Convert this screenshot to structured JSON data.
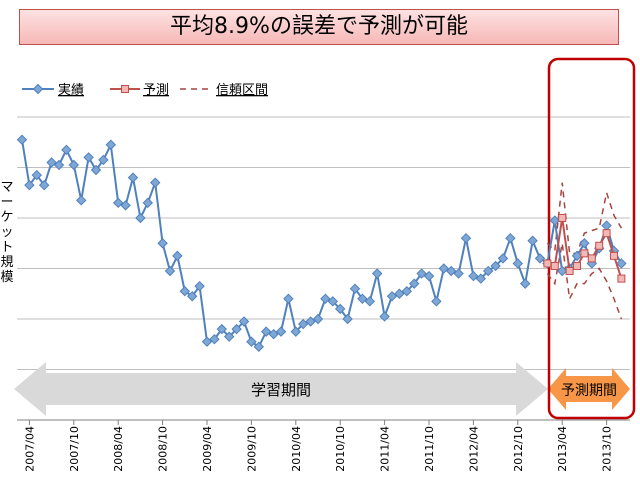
{
  "title": "平均8.9%の誤差で予測が可能",
  "ylabel_chars": [
    "マ",
    "ー",
    "ケ",
    "ッ",
    "ト",
    "規",
    "模"
  ],
  "legend": {
    "actual": "実績",
    "forecast": "予測",
    "interval": "信頼区間"
  },
  "arrows": {
    "training": "学習期間",
    "forecast": "予測期間"
  },
  "colors": {
    "actual": "#4f81bd",
    "forecast": "#c0504d",
    "interval": "#a64540",
    "grid": "#bfbfbf",
    "highlight": "#c00000",
    "training_arrow": "#d9d9d9",
    "forecast_arrow": "#f79646"
  },
  "chart_data": {
    "type": "line",
    "title": "",
    "xlabel": "",
    "ylabel": "マーケット規模",
    "x_ticks": [
      "2007/04",
      "2007/10",
      "2008/04",
      "2008/10",
      "2009/04",
      "2009/10",
      "2010/04",
      "2010/10",
      "2011/04",
      "2011/10",
      "2012/04",
      "2012/10",
      "2013/04",
      "2013/10"
    ],
    "y_axis": "no tick labels; 6 horizontal gridlines",
    "legend_position": "top-left",
    "series": [
      {
        "name": "実績",
        "start_month": "2007/03",
        "values": [
          5.55,
          4.65,
          4.85,
          4.65,
          5.1,
          5.05,
          5.35,
          5.05,
          4.35,
          5.2,
          4.95,
          5.15,
          5.45,
          4.3,
          4.25,
          4.8,
          4.0,
          4.3,
          4.7,
          3.5,
          2.95,
          3.25,
          2.55,
          2.45,
          2.65,
          1.55,
          1.6,
          1.8,
          1.65,
          1.8,
          1.95,
          1.55,
          1.45,
          1.75,
          1.7,
          1.75,
          2.4,
          1.75,
          1.9,
          1.95,
          2.0,
          2.4,
          2.35,
          2.2,
          2.0,
          2.6,
          2.4,
          2.35,
          2.9,
          2.05,
          2.45,
          2.5,
          2.55,
          2.7,
          2.9,
          2.85,
          2.35,
          3.0,
          2.95,
          2.9,
          3.6,
          2.85,
          2.8,
          2.95,
          3.05,
          3.2,
          3.6,
          3.1,
          2.7,
          3.55,
          3.2,
          3.1,
          3.95,
          2.95,
          3.0,
          3.25,
          3.5,
          3.1,
          3.4,
          3.85,
          3.35,
          3.1
        ]
      },
      {
        "name": "予測",
        "start_month": "2013/02",
        "values": [
          3.1,
          3.05,
          4.0,
          2.95,
          3.05,
          3.3,
          3.2,
          3.45,
          3.7,
          3.25,
          2.8
        ]
      },
      {
        "name": "信頼区間 (上限)",
        "start_month": "2013/02",
        "values": [
          3.5,
          3.35,
          4.7,
          3.3,
          3.3,
          3.7,
          3.75,
          3.8,
          4.5,
          4.05,
          3.8
        ]
      },
      {
        "name": "信頼区間 (下限)",
        "start_month": "2013/02",
        "values": [
          2.9,
          2.7,
          3.5,
          2.4,
          2.7,
          2.7,
          2.9,
          3.0,
          2.75,
          2.4,
          2.0
        ]
      }
    ]
  }
}
